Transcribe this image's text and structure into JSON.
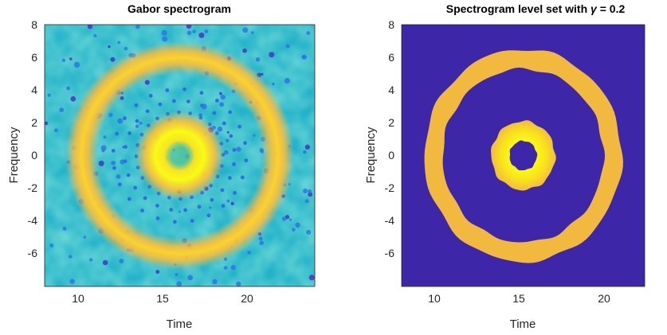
{
  "chart_data": [
    {
      "type": "heatmap",
      "title": "Gabor spectrogram",
      "xlabel": "Time",
      "ylabel": "Frequency",
      "xlim": [
        8,
        24
      ],
      "ylim": [
        -8,
        8
      ],
      "xticks": [
        "10",
        "15",
        "20"
      ],
      "yticks": [
        "8",
        "6",
        "4",
        "2",
        "0",
        "-2",
        "-4",
        "-6"
      ],
      "grid": false,
      "legend": "none",
      "description_values": {
        "center": [
          16,
          0
        ],
        "inner_ring_radius": 1.2,
        "outer_ring_radius": 5.9
      },
      "colormap": [
        "#3e26a8",
        "#2d7fe4",
        "#17bcc8",
        "#60cc8a",
        "#c1c43a",
        "#ffb53a",
        "#f9fb14"
      ]
    },
    {
      "type": "heatmap",
      "title_text": "Spectrogram level set with ",
      "title_symbol": "γ",
      "title_suffix": " = 0.2",
      "xlabel": "Time",
      "ylabel": "Frequency",
      "xlim": [
        8,
        24
      ],
      "ylim": [
        -8,
        8
      ],
      "xticks": [
        "10",
        "15",
        "20"
      ],
      "yticks": [
        "8",
        "6",
        "4",
        "2",
        "0",
        "-2",
        "-4",
        "-6"
      ],
      "grid": false,
      "legend": "none",
      "description_values": {
        "center": [
          16,
          0
        ],
        "inner_ring_radius": [
          0.9,
          2.1
        ],
        "outer_ring_radius": [
          5.3,
          6.5
        ]
      },
      "background_color": "#3e26a8",
      "colormap": [
        "#3e26a8",
        "#f0b93e",
        "#f9fb14"
      ]
    }
  ]
}
